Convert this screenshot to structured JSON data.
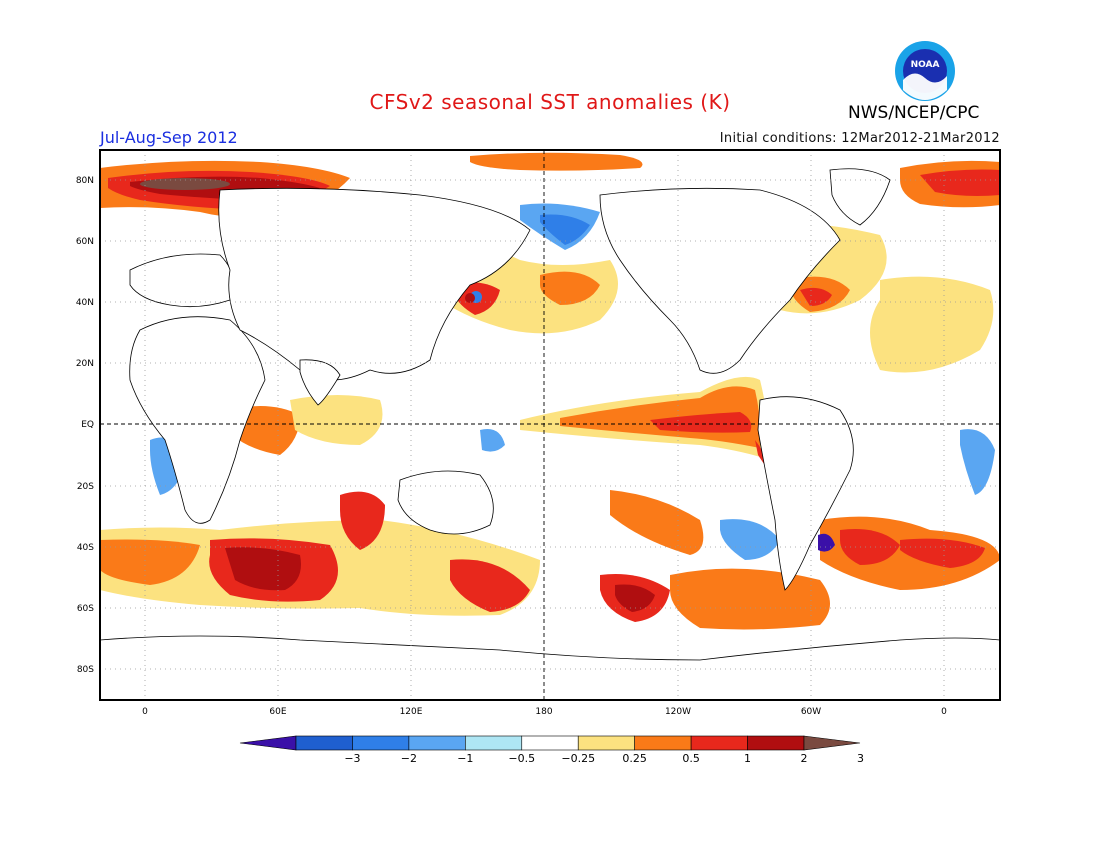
{
  "title": "CFSv2 seasonal SST anomalies (K)",
  "season": "Jul-Aug-Sep 2012",
  "initial_conditions": "Initial conditions: 12Mar2012-21Mar2012",
  "agency": "NWS/NCEP/CPC",
  "logo_text": "NOAA",
  "map": {
    "lat_labels": [
      "80N",
      "60N",
      "40N",
      "20N",
      "EQ",
      "20S",
      "40S",
      "60S",
      "80S"
    ],
    "lon_labels": [
      "0",
      "60E",
      "120E",
      "180",
      "120W",
      "60W",
      "0"
    ]
  },
  "colorbar": {
    "labels": [
      "−3",
      "−2",
      "−1",
      "−0.5",
      "−0.25",
      "0.25",
      "0.5",
      "1",
      "2",
      "3"
    ],
    "colors": [
      "#3a10a8",
      "#1f5fcf",
      "#2f7fe8",
      "#5aa6f2",
      "#aee6f4",
      "#ffffff",
      "#fce280",
      "#fa7a18",
      "#e8281c",
      "#b00e10",
      "#7a4a40"
    ]
  }
}
